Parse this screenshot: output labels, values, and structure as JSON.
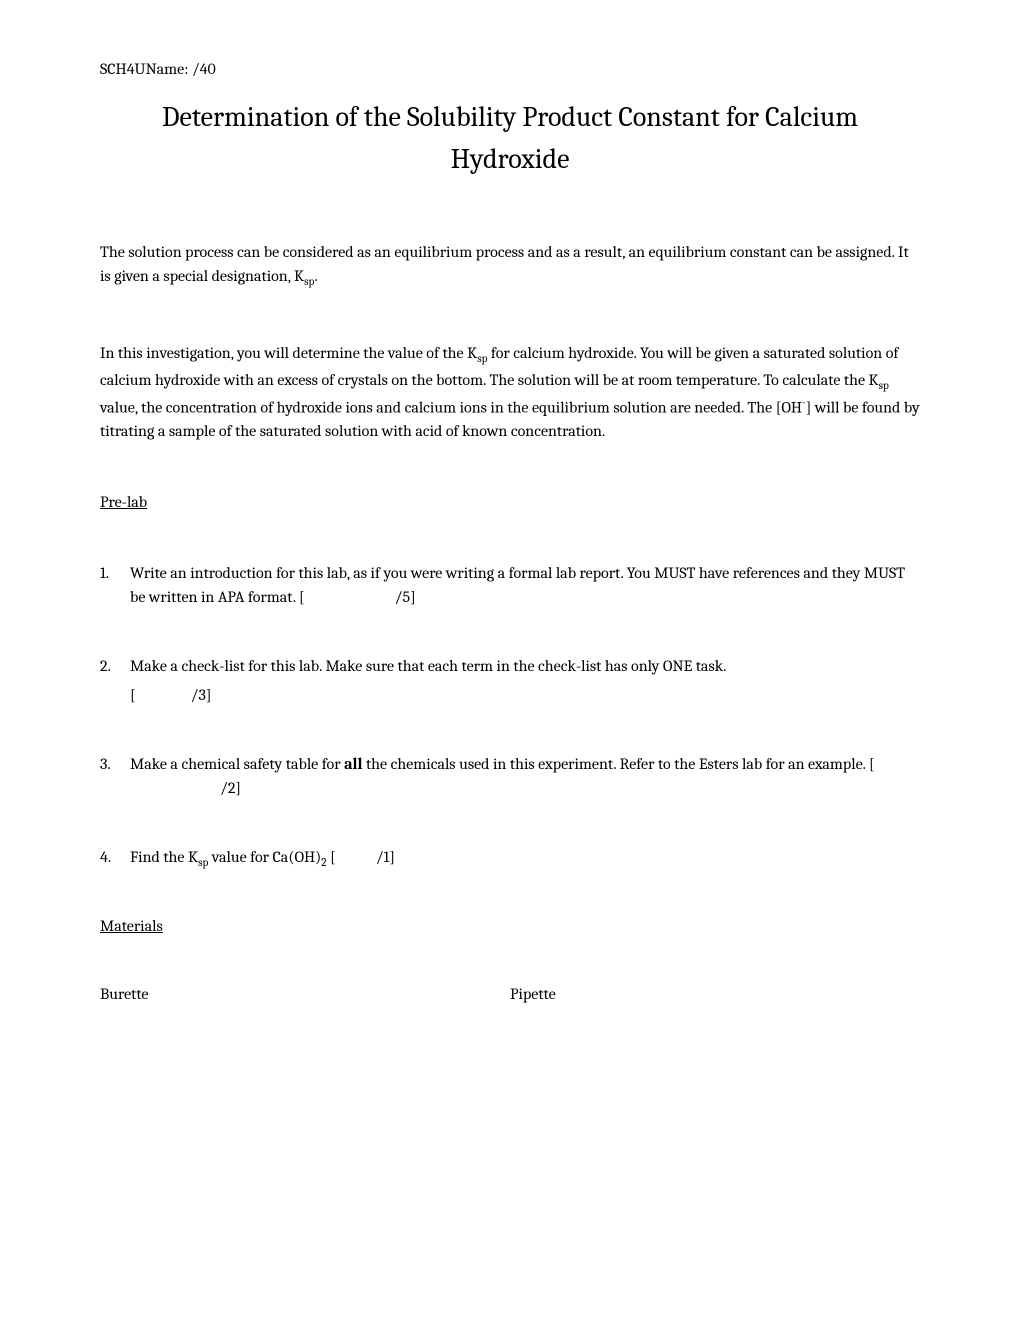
{
  "header": {
    "course": "SCH4U",
    "nameLabel": "Name:",
    "totalScore": "/40"
  },
  "title": "Determination of the Solubility Product Constant for Calcium Hydroxide",
  "intro": {
    "para1_part1": "The solution process can be considered as an equilibrium process and as a result, an equilibrium constant can be assigned. It is given a special designation, K",
    "para1_sub": "sp",
    "para1_part2": ".",
    "para2_part1": "In this investigation, you will determine the value of the K",
    "para2_sub1": "sp",
    "para2_part2": " for calcium hydroxide. You will be given a saturated solution of calcium hydroxide with an excess of crystals on the bottom. The solution will be at room temperature. To calculate the K",
    "para2_sub2": "sp",
    "para2_part3": " value, the concentration of hydroxide ions and calcium ions in the equilibrium solution are needed. The [OH",
    "para2_sup": "-",
    "para2_part4": "] will be found by titrating a sample of the saturated solution with acid of known concentration."
  },
  "prelab": {
    "heading": "Pre-lab",
    "items": [
      {
        "text": "Write an introduction for this lab, as if you were writing a formal lab report. You MUST have references and they MUST be written in APA format. [",
        "score": "/5]"
      },
      {
        "text": "Make a check-list for this lab. Make sure that each term in the check-list has only ONE task.",
        "scoreLine": "[",
        "score": "/3]"
      },
      {
        "text_part1": "Make a chemical safety table for ",
        "text_bold": "all",
        "text_part2": " the chemicals used in this experiment. Refer to the Esters lab for an example. [",
        "score": "/2]"
      },
      {
        "text_part1": "Find the K",
        "text_sub1": "sp",
        "text_part2": " value for Ca(OH)",
        "text_sub2": "2",
        "text_part3": " [",
        "score": "/1]"
      }
    ]
  },
  "materials": {
    "heading": "Materials",
    "col1": "Burette",
    "col2": "Pipette"
  }
}
